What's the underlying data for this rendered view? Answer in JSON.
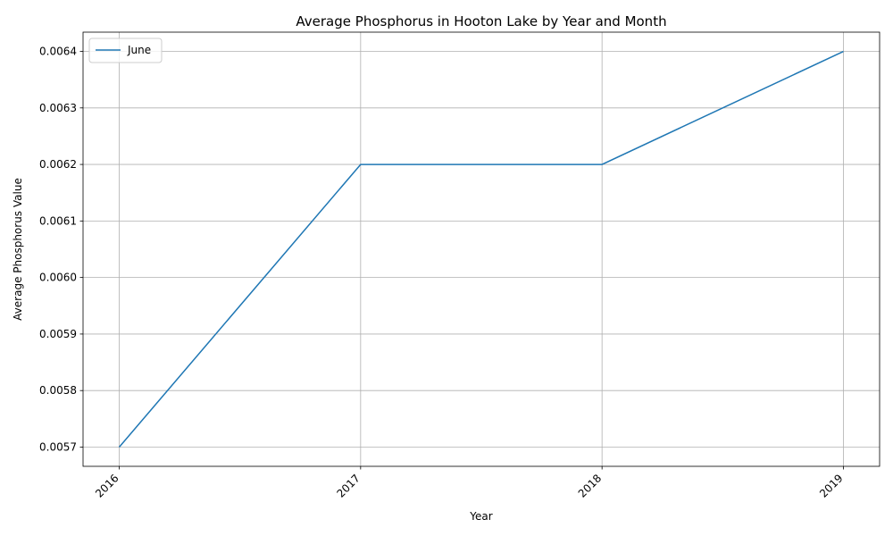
{
  "chart_data": {
    "type": "line",
    "title": "Average Phosphorus in Hooton Lake by Year and Month",
    "xlabel": "Year",
    "ylabel": "Average Phosphorus Value",
    "x": [
      "2016",
      "2017",
      "2018",
      "2019"
    ],
    "series": [
      {
        "name": "June",
        "values": [
          0.0057,
          0.0062,
          0.0062,
          0.0064
        ],
        "color": "#1f77b4"
      }
    ],
    "yticks": [
      "0.0057",
      "0.0058",
      "0.0059",
      "0.0060",
      "0.0061",
      "0.0062",
      "0.0063",
      "0.0064"
    ],
    "ylim": [
      0.005666,
      0.006434
    ],
    "grid": true,
    "legend_position": "top-left"
  }
}
